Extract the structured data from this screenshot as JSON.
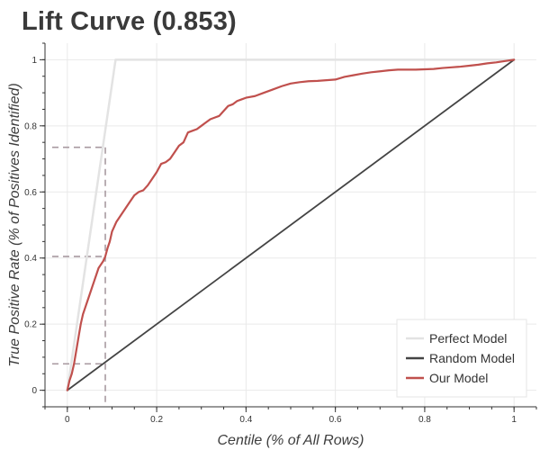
{
  "chart_data": {
    "type": "line",
    "title": "Lift Curve (0.853)",
    "xlabel": "Centile (% of All Rows)",
    "ylabel": "True Positive Rate (% of Positives Identified)",
    "xlim": [
      -0.05,
      1.05
    ],
    "ylim": [
      -0.05,
      1.05
    ],
    "x_ticks": [
      0,
      0.2,
      0.4,
      0.6,
      0.8,
      1
    ],
    "x_tick_labels": [
      "0",
      "0.2",
      "0.4",
      "0.6",
      "0.8",
      "1"
    ],
    "y_ticks": [
      0,
      0.2,
      0.4,
      0.6,
      0.8,
      1
    ],
    "y_tick_labels": [
      "0",
      "0.2",
      "0.4",
      "0.6",
      "0.8",
      "1"
    ],
    "grid": true,
    "legend": "bottom-right",
    "series": [
      {
        "name": "Perfect Model",
        "color": "#e3e3e3",
        "x": [
          0,
          0.108,
          1
        ],
        "y": [
          0,
          1,
          1
        ]
      },
      {
        "name": "Random Model",
        "color": "#444444",
        "x": [
          0,
          1
        ],
        "y": [
          0,
          1
        ]
      },
      {
        "name": "Our Model",
        "color": "#c0504d",
        "x": [
          0,
          0.005,
          0.01,
          0.015,
          0.02,
          0.025,
          0.03,
          0.035,
          0.04,
          0.045,
          0.05,
          0.055,
          0.06,
          0.065,
          0.07,
          0.075,
          0.08,
          0.085,
          0.09,
          0.095,
          0.1,
          0.11,
          0.12,
          0.13,
          0.14,
          0.15,
          0.16,
          0.17,
          0.18,
          0.19,
          0.2,
          0.21,
          0.22,
          0.23,
          0.24,
          0.25,
          0.26,
          0.27,
          0.28,
          0.29,
          0.3,
          0.31,
          0.32,
          0.33,
          0.34,
          0.35,
          0.36,
          0.37,
          0.38,
          0.39,
          0.4,
          0.42,
          0.44,
          0.46,
          0.48,
          0.5,
          0.52,
          0.54,
          0.56,
          0.58,
          0.6,
          0.62,
          0.64,
          0.66,
          0.68,
          0.7,
          0.72,
          0.74,
          0.76,
          0.78,
          0.8,
          0.82,
          0.84,
          0.86,
          0.88,
          0.9,
          0.92,
          0.94,
          0.96,
          0.98,
          1
        ],
        "y": [
          0,
          0.03,
          0.05,
          0.08,
          0.12,
          0.16,
          0.2,
          0.23,
          0.25,
          0.27,
          0.29,
          0.31,
          0.33,
          0.35,
          0.37,
          0.38,
          0.39,
          0.405,
          0.43,
          0.45,
          0.48,
          0.51,
          0.53,
          0.55,
          0.57,
          0.59,
          0.6,
          0.605,
          0.62,
          0.64,
          0.66,
          0.685,
          0.69,
          0.7,
          0.72,
          0.74,
          0.75,
          0.78,
          0.785,
          0.79,
          0.8,
          0.81,
          0.82,
          0.825,
          0.83,
          0.845,
          0.86,
          0.865,
          0.875,
          0.88,
          0.885,
          0.89,
          0.9,
          0.91,
          0.92,
          0.928,
          0.932,
          0.935,
          0.936,
          0.938,
          0.94,
          0.948,
          0.953,
          0.958,
          0.962,
          0.965,
          0.968,
          0.97,
          0.97,
          0.97,
          0.971,
          0.972,
          0.975,
          0.977,
          0.979,
          0.982,
          0.985,
          0.989,
          0.992,
          0.996,
          1
        ]
      }
    ],
    "annotations": [
      {
        "type": "dashed-guide",
        "x": 0.085,
        "y": 0.08
      },
      {
        "type": "dashed-guide",
        "x": 0.085,
        "y": 0.405
      },
      {
        "type": "dashed-guide",
        "x": 0.085,
        "y": 0.735
      }
    ]
  }
}
